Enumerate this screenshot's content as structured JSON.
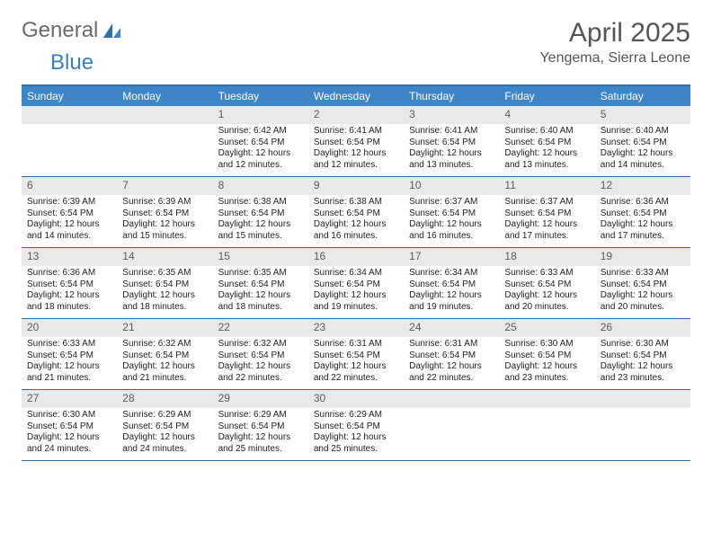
{
  "brand": {
    "part1": "General",
    "part2": "Blue"
  },
  "title": "April 2025",
  "location": "Yengema, Sierra Leone",
  "colors": {
    "header_bg": "#3d85c6",
    "rule": "#2f6fa8",
    "daynum_bg": "#e9e9e9",
    "text": "#222222",
    "muted": "#5a5a5a"
  },
  "daysOfWeek": [
    "Sunday",
    "Monday",
    "Tuesday",
    "Wednesday",
    "Thursday",
    "Friday",
    "Saturday"
  ],
  "weeks": [
    [
      null,
      null,
      {
        "n": "1",
        "sr": "6:42 AM",
        "ss": "6:54 PM",
        "dl": "12 hours and 12 minutes."
      },
      {
        "n": "2",
        "sr": "6:41 AM",
        "ss": "6:54 PM",
        "dl": "12 hours and 12 minutes."
      },
      {
        "n": "3",
        "sr": "6:41 AM",
        "ss": "6:54 PM",
        "dl": "12 hours and 13 minutes."
      },
      {
        "n": "4",
        "sr": "6:40 AM",
        "ss": "6:54 PM",
        "dl": "12 hours and 13 minutes."
      },
      {
        "n": "5",
        "sr": "6:40 AM",
        "ss": "6:54 PM",
        "dl": "12 hours and 14 minutes."
      }
    ],
    [
      {
        "n": "6",
        "sr": "6:39 AM",
        "ss": "6:54 PM",
        "dl": "12 hours and 14 minutes."
      },
      {
        "n": "7",
        "sr": "6:39 AM",
        "ss": "6:54 PM",
        "dl": "12 hours and 15 minutes."
      },
      {
        "n": "8",
        "sr": "6:38 AM",
        "ss": "6:54 PM",
        "dl": "12 hours and 15 minutes."
      },
      {
        "n": "9",
        "sr": "6:38 AM",
        "ss": "6:54 PM",
        "dl": "12 hours and 16 minutes."
      },
      {
        "n": "10",
        "sr": "6:37 AM",
        "ss": "6:54 PM",
        "dl": "12 hours and 16 minutes."
      },
      {
        "n": "11",
        "sr": "6:37 AM",
        "ss": "6:54 PM",
        "dl": "12 hours and 17 minutes."
      },
      {
        "n": "12",
        "sr": "6:36 AM",
        "ss": "6:54 PM",
        "dl": "12 hours and 17 minutes."
      }
    ],
    [
      {
        "n": "13",
        "sr": "6:36 AM",
        "ss": "6:54 PM",
        "dl": "12 hours and 18 minutes."
      },
      {
        "n": "14",
        "sr": "6:35 AM",
        "ss": "6:54 PM",
        "dl": "12 hours and 18 minutes."
      },
      {
        "n": "15",
        "sr": "6:35 AM",
        "ss": "6:54 PM",
        "dl": "12 hours and 18 minutes."
      },
      {
        "n": "16",
        "sr": "6:34 AM",
        "ss": "6:54 PM",
        "dl": "12 hours and 19 minutes."
      },
      {
        "n": "17",
        "sr": "6:34 AM",
        "ss": "6:54 PM",
        "dl": "12 hours and 19 minutes."
      },
      {
        "n": "18",
        "sr": "6:33 AM",
        "ss": "6:54 PM",
        "dl": "12 hours and 20 minutes."
      },
      {
        "n": "19",
        "sr": "6:33 AM",
        "ss": "6:54 PM",
        "dl": "12 hours and 20 minutes."
      }
    ],
    [
      {
        "n": "20",
        "sr": "6:33 AM",
        "ss": "6:54 PM",
        "dl": "12 hours and 21 minutes."
      },
      {
        "n": "21",
        "sr": "6:32 AM",
        "ss": "6:54 PM",
        "dl": "12 hours and 21 minutes."
      },
      {
        "n": "22",
        "sr": "6:32 AM",
        "ss": "6:54 PM",
        "dl": "12 hours and 22 minutes."
      },
      {
        "n": "23",
        "sr": "6:31 AM",
        "ss": "6:54 PM",
        "dl": "12 hours and 22 minutes."
      },
      {
        "n": "24",
        "sr": "6:31 AM",
        "ss": "6:54 PM",
        "dl": "12 hours and 22 minutes."
      },
      {
        "n": "25",
        "sr": "6:30 AM",
        "ss": "6:54 PM",
        "dl": "12 hours and 23 minutes."
      },
      {
        "n": "26",
        "sr": "6:30 AM",
        "ss": "6:54 PM",
        "dl": "12 hours and 23 minutes."
      }
    ],
    [
      {
        "n": "27",
        "sr": "6:30 AM",
        "ss": "6:54 PM",
        "dl": "12 hours and 24 minutes."
      },
      {
        "n": "28",
        "sr": "6:29 AM",
        "ss": "6:54 PM",
        "dl": "12 hours and 24 minutes."
      },
      {
        "n": "29",
        "sr": "6:29 AM",
        "ss": "6:54 PM",
        "dl": "12 hours and 25 minutes."
      },
      {
        "n": "30",
        "sr": "6:29 AM",
        "ss": "6:54 PM",
        "dl": "12 hours and 25 minutes."
      },
      null,
      null,
      null
    ]
  ],
  "labels": {
    "sunrise": "Sunrise:",
    "sunset": "Sunset:",
    "daylight": "Daylight:"
  }
}
